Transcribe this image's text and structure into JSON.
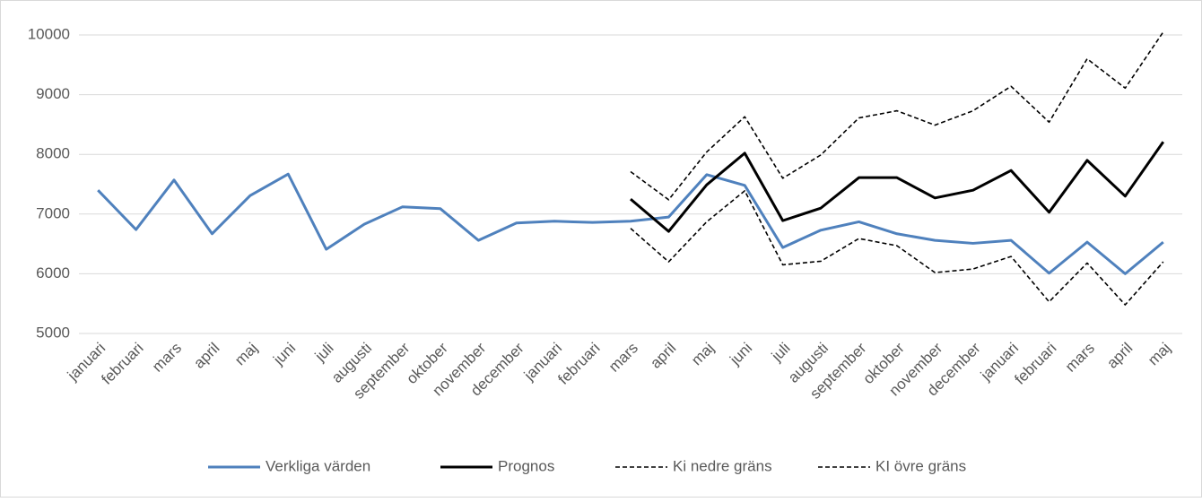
{
  "chart_data": {
    "type": "line",
    "categories": [
      "januari",
      "februari",
      "mars",
      "april",
      "maj",
      "juni",
      "juli",
      "augusti",
      "september",
      "oktober",
      "november",
      "december",
      "januari",
      "februari",
      "mars",
      "april",
      "maj",
      "juni",
      "juli",
      "augusti",
      "september",
      "oktober",
      "november",
      "december",
      "januari",
      "februari",
      "mars",
      "april",
      "maj"
    ],
    "series": [
      {
        "name": "Verkliga värden",
        "color": "#4f81bd",
        "dash": false,
        "values": [
          7400,
          6740,
          7570,
          6670,
          7310,
          7670,
          6410,
          6830,
          7120,
          7090,
          6560,
          6850,
          6880,
          6860,
          6880,
          6950,
          7660,
          7480,
          6440,
          6730,
          6870,
          6670,
          6560,
          6510,
          6560,
          6010,
          6530,
          6000,
          6530
        ]
      },
      {
        "name": "Prognos",
        "color": "#000000",
        "dash": false,
        "values": [
          null,
          null,
          null,
          null,
          null,
          null,
          null,
          null,
          null,
          null,
          null,
          null,
          null,
          null,
          7250,
          6710,
          7490,
          8020,
          6890,
          7100,
          7610,
          7610,
          7270,
          7400,
          7730,
          7030,
          7900,
          7300,
          8210
        ]
      },
      {
        "name": "Ki nedre gräns",
        "color": "#000000",
        "dash": true,
        "values": [
          null,
          null,
          null,
          null,
          null,
          null,
          null,
          null,
          null,
          null,
          null,
          null,
          null,
          null,
          6760,
          6200,
          6870,
          7390,
          6150,
          6210,
          6590,
          6470,
          6020,
          6080,
          6290,
          5530,
          6180,
          5480,
          6200
        ]
      },
      {
        "name": "KI övre gräns",
        "color": "#000000",
        "dash": true,
        "values": [
          null,
          null,
          null,
          null,
          null,
          null,
          null,
          null,
          null,
          null,
          null,
          null,
          null,
          null,
          7710,
          7240,
          8040,
          8630,
          7600,
          7990,
          8610,
          8730,
          8490,
          8730,
          9140,
          8540,
          9600,
          9110,
          10050
        ]
      }
    ],
    "ylim": [
      5000,
      10000
    ],
    "yticks": [
      5000,
      6000,
      7000,
      8000,
      9000,
      10000
    ],
    "grid": true,
    "legend": "bottom"
  }
}
